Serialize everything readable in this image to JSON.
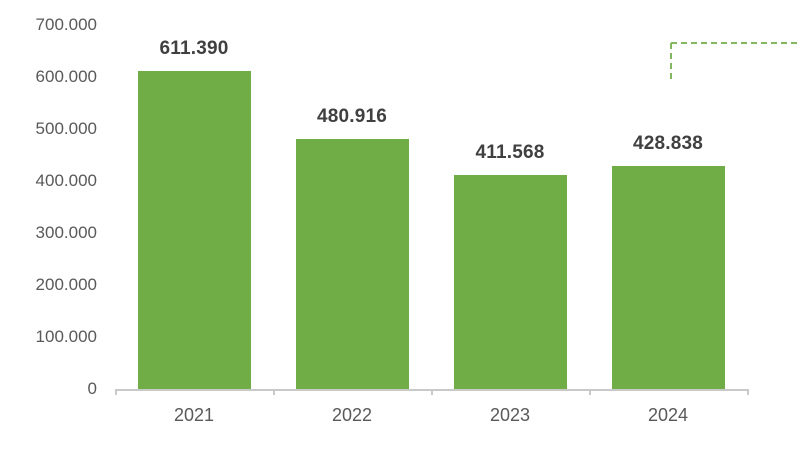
{
  "chart_data": {
    "type": "bar",
    "title": "",
    "xlabel": "",
    "ylabel": "",
    "categories": [
      "2021",
      "2022",
      "2023",
      "2024"
    ],
    "values": [
      611390,
      480916,
      411568,
      428838
    ],
    "value_labels": [
      "611.390",
      "480.916",
      "411.568",
      "428.838"
    ],
    "ylim": [
      0,
      700000
    ],
    "y_ticks": [
      {
        "value": 0,
        "label": "0"
      },
      {
        "value": 100000,
        "label": "100.000"
      },
      {
        "value": 200000,
        "label": "200.000"
      },
      {
        "value": 300000,
        "label": "300.000"
      },
      {
        "value": 400000,
        "label": "400.000"
      },
      {
        "value": 500000,
        "label": "500.000"
      },
      {
        "value": 600000,
        "label": "600.000"
      },
      {
        "value": 700000,
        "label": "700.000"
      }
    ],
    "grid": false,
    "legend": "none"
  },
  "colors": {
    "bar": "#70AD47",
    "data_label": "#404040",
    "axis_label": "#595959",
    "axis_line": "#C9C9C9",
    "dashed_annotation": "#84B860",
    "background": "#FFFFFF"
  }
}
